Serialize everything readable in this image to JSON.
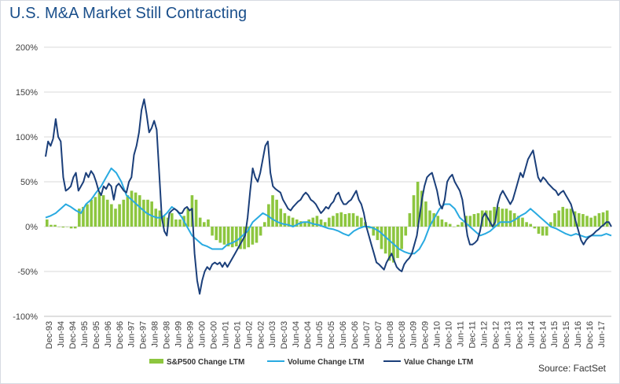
{
  "title": "U.S. M&A Market Still Contracting",
  "source": "Source: FactSet",
  "colors": {
    "sp500": "#8dc63f",
    "volume": "#29aae1",
    "value": "#1b3f7a",
    "grid": "#d9d9d9",
    "axis": "#404040"
  },
  "chart_data": {
    "type": "line",
    "title": "U.S. M&A Market Still Contracting",
    "xlabel": "",
    "ylabel": "",
    "ylim": [
      -100,
      200
    ],
    "yticks": [
      "200%",
      "150%",
      "100%",
      "50%",
      "0%",
      "-50%",
      "-100%"
    ],
    "ytick_values": [
      200,
      150,
      100,
      50,
      0,
      -50,
      -100
    ],
    "grid": true,
    "legend_position": "bottom",
    "x_labels": [
      "Dec-93",
      "Jun-94",
      "Dec-94",
      "Jun-95",
      "Dec-95",
      "Jun-96",
      "Dec-96",
      "Jun-97",
      "Dec-97",
      "Jun-98",
      "Dec-98",
      "Jun-99",
      "Dec-99",
      "Jun-00",
      "Dec-00",
      "Jun-01",
      "Dec-01",
      "Jun-02",
      "Dec-02",
      "Jun-03",
      "Dec-03",
      "Jun-04",
      "Dec-04",
      "Jun-05",
      "Dec-05",
      "Jun-06",
      "Dec-06",
      "Jun-07",
      "Dec-07",
      "Jun-08",
      "Dec-08",
      "Jun-09",
      "Dec-09",
      "Jun-10",
      "Dec-10",
      "Jun-11",
      "Dec-11",
      "Jun-12",
      "Dec-12",
      "Jun-13",
      "Dec-13",
      "Jun-14",
      "Dec-14",
      "Jun-15",
      "Dec-15",
      "Jun-16",
      "Dec-16",
      "Jun-17"
    ],
    "series": [
      {
        "name": "S&P500 Change LTM",
        "kind": "bar",
        "values": [
          8,
          2,
          2,
          0,
          -1,
          0,
          -2,
          -2,
          20,
          22,
          25,
          30,
          33,
          38,
          35,
          30,
          25,
          20,
          25,
          30,
          35,
          40,
          38,
          35,
          30,
          30,
          28,
          20,
          18,
          12,
          10,
          15,
          8,
          8,
          12,
          20,
          35,
          30,
          10,
          5,
          8,
          -10,
          -15,
          -18,
          -20,
          -22,
          -23,
          -22,
          -25,
          -25,
          -23,
          -20,
          -18,
          -10,
          5,
          25,
          35,
          30,
          20,
          15,
          12,
          10,
          8,
          6,
          5,
          8,
          10,
          12,
          8,
          5,
          10,
          12,
          15,
          16,
          14,
          15,
          15,
          12,
          10,
          5,
          -2,
          -10,
          -15,
          -25,
          -30,
          -38,
          -40,
          -35,
          -25,
          -10,
          15,
          35,
          50,
          40,
          28,
          18,
          15,
          12,
          8,
          5,
          3,
          0,
          2,
          5,
          12,
          12,
          14,
          15,
          18,
          18,
          18,
          22,
          22,
          20,
          20,
          18,
          15,
          12,
          10,
          5,
          3,
          -2,
          -8,
          -10,
          -10,
          5,
          15,
          18,
          22,
          20,
          20,
          17,
          15,
          14,
          12,
          10,
          12,
          15,
          16,
          18
        ]
      },
      {
        "name": "Volume Change LTM",
        "kind": "line",
        "values": [
          10,
          12,
          15,
          20,
          25,
          22,
          18,
          15,
          25,
          30,
          38,
          45,
          55,
          65,
          60,
          50,
          35,
          30,
          25,
          20,
          15,
          12,
          10,
          10,
          15,
          22,
          18,
          10,
          0,
          -10,
          -15,
          -20,
          -22,
          -25,
          -25,
          -25,
          -20,
          -18,
          -15,
          -10,
          -5,
          5,
          10,
          15,
          12,
          8,
          5,
          3,
          2,
          0,
          3,
          5,
          5,
          3,
          2,
          0,
          -2,
          -3,
          -5,
          -8,
          -10,
          -5,
          -2,
          0,
          0,
          -2,
          -5,
          -10,
          -15,
          -20,
          -25,
          -28,
          -30,
          -30,
          -25,
          -15,
          0,
          10,
          20,
          25,
          25,
          20,
          10,
          5,
          0,
          -5,
          -10,
          -8,
          -5,
          0,
          5,
          5,
          5,
          8,
          12,
          15,
          20,
          15,
          10,
          5,
          0,
          -2,
          -5,
          -8,
          -10,
          -8,
          -10,
          -12,
          -10,
          -10,
          -10,
          -8,
          -10
        ]
      },
      {
        "name": "Value Change LTM",
        "kind": "line",
        "values": [
          78,
          95,
          90,
          98,
          120,
          100,
          95,
          55,
          40,
          42,
          45,
          55,
          60,
          40,
          45,
          50,
          60,
          55,
          62,
          58,
          50,
          40,
          35,
          45,
          42,
          48,
          45,
          30,
          45,
          48,
          44,
          40,
          38,
          50,
          55,
          80,
          90,
          105,
          130,
          142,
          125,
          105,
          110,
          118,
          108,
          60,
          10,
          -5,
          -10,
          15,
          18,
          20,
          18,
          15,
          15,
          20,
          22,
          18,
          20,
          -30,
          -60,
          -75,
          -60,
          -50,
          -45,
          -48,
          -42,
          -40,
          -42,
          -40,
          -45,
          -40,
          -45,
          -40,
          -35,
          -30,
          -25,
          -20,
          -15,
          -10,
          10,
          40,
          65,
          55,
          50,
          60,
          75,
          90,
          95,
          60,
          45,
          42,
          40,
          38,
          30,
          25,
          20,
          18,
          22,
          25,
          28,
          30,
          35,
          38,
          35,
          30,
          28,
          25,
          20,
          15,
          18,
          22,
          20,
          25,
          28,
          35,
          38,
          30,
          25,
          25,
          28,
          30,
          35,
          40,
          30,
          25,
          15,
          0,
          -10,
          -20,
          -30,
          -40,
          -42,
          -45,
          -48,
          -40,
          -35,
          -30,
          -38,
          -45,
          -48,
          -50,
          -42,
          -38,
          -35,
          -30,
          -20,
          -10,
          10,
          30,
          45,
          55,
          58,
          60,
          50,
          40,
          25,
          20,
          30,
          50,
          55,
          58,
          50,
          45,
          40,
          30,
          10,
          -10,
          -20,
          -20,
          -18,
          -15,
          -5,
          10,
          15,
          10,
          5,
          0,
          5,
          25,
          35,
          40,
          35,
          30,
          25,
          30,
          40,
          50,
          60,
          55,
          65,
          75,
          80,
          85,
          70,
          55,
          50,
          55,
          52,
          48,
          45,
          42,
          40,
          35,
          38,
          40,
          35,
          30,
          25,
          15,
          5,
          -5,
          -15,
          -20,
          -15,
          -12,
          -10,
          -8,
          -5,
          -3,
          0,
          2,
          5,
          5,
          0
        ]
      }
    ]
  },
  "legend": [
    {
      "label": "S&P500 Change LTM"
    },
    {
      "label": "Volume Change LTM"
    },
    {
      "label": "Value Change LTM"
    }
  ]
}
